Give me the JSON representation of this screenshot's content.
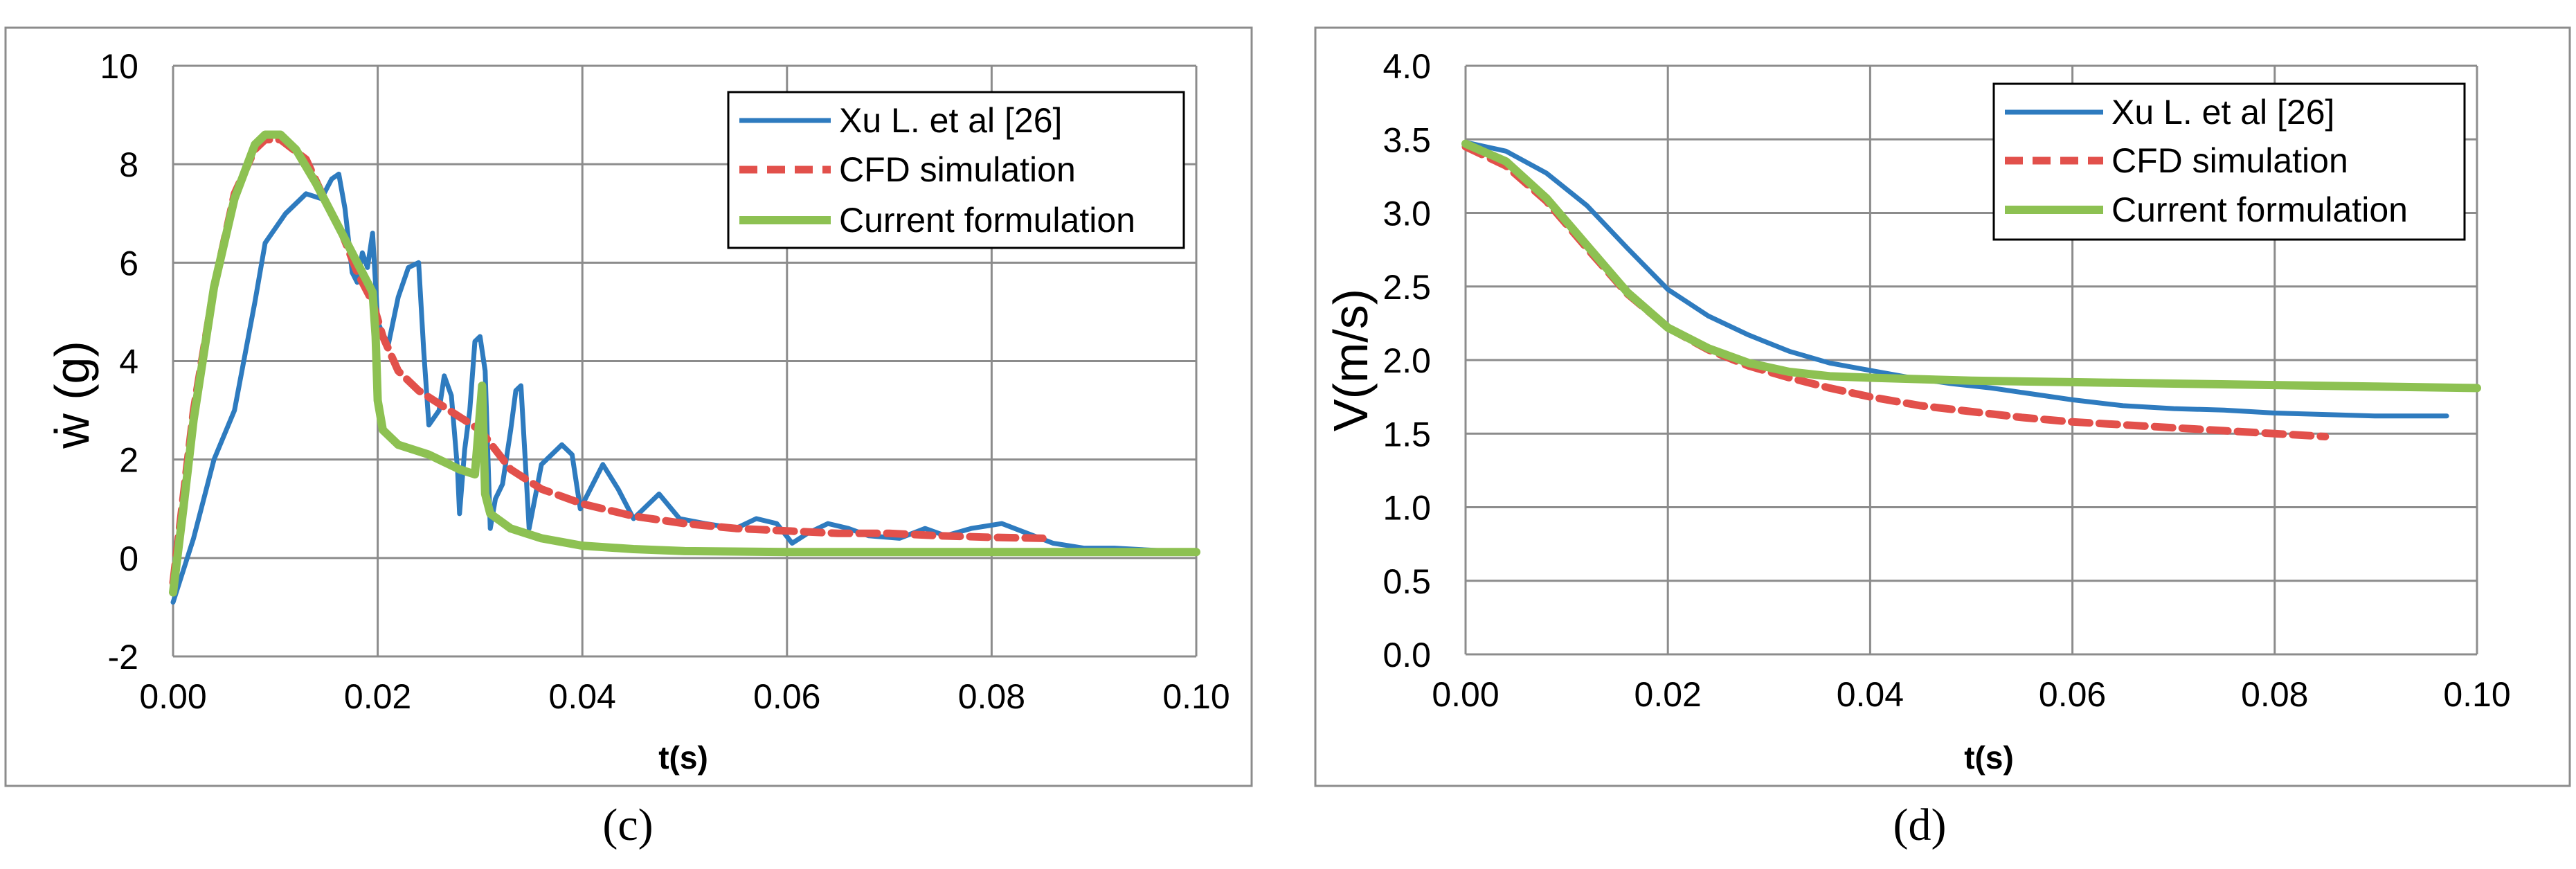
{
  "chart_data": [
    {
      "type": "line",
      "panel_label": "(c)",
      "xlabel": "t(s)",
      "ylabel": "ẇ (g)",
      "xlim": [
        0,
        0.1
      ],
      "ylim": [
        -2,
        10
      ],
      "x_ticks": [
        "0.00",
        "0.02",
        "0.04",
        "0.06",
        "0.08",
        "0.10"
      ],
      "y_ticks": [
        "-2",
        "0",
        "2",
        "4",
        "6",
        "8",
        "10"
      ],
      "legend_position": "top-right",
      "series": [
        {
          "name": "Xu L. et al [26]",
          "color": "#2e7bbf",
          "style": "solid",
          "points": [
            [
              0,
              -0.9
            ],
            [
              0.002,
              0.4
            ],
            [
              0.004,
              2.0
            ],
            [
              0.006,
              3.0
            ],
            [
              0.008,
              5.2
            ],
            [
              0.009,
              6.4
            ],
            [
              0.011,
              7.0
            ],
            [
              0.013,
              7.4
            ],
            [
              0.0145,
              7.3
            ],
            [
              0.0155,
              7.7
            ],
            [
              0.0162,
              7.8
            ],
            [
              0.0168,
              7.1
            ],
            [
              0.0175,
              5.8
            ],
            [
              0.018,
              5.6
            ],
            [
              0.0185,
              6.2
            ],
            [
              0.019,
              5.9
            ],
            [
              0.0195,
              6.6
            ],
            [
              0.02,
              4.8
            ],
            [
              0.021,
              4.3
            ],
            [
              0.022,
              5.3
            ],
            [
              0.023,
              5.9
            ],
            [
              0.024,
              6.0
            ],
            [
              0.0245,
              4.2
            ],
            [
              0.025,
              2.7
            ],
            [
              0.026,
              3.0
            ],
            [
              0.0265,
              3.7
            ],
            [
              0.0272,
              3.3
            ],
            [
              0.0278,
              1.8
            ],
            [
              0.028,
              0.9
            ],
            [
              0.0285,
              2.2
            ],
            [
              0.029,
              3.0
            ],
            [
              0.0295,
              4.4
            ],
            [
              0.03,
              4.5
            ],
            [
              0.0305,
              3.8
            ],
            [
              0.031,
              0.6
            ],
            [
              0.0315,
              1.2
            ],
            [
              0.0322,
              1.5
            ],
            [
              0.033,
              2.6
            ],
            [
              0.0335,
              3.4
            ],
            [
              0.034,
              3.5
            ],
            [
              0.0345,
              1.7
            ],
            [
              0.0348,
              0.6
            ],
            [
              0.036,
              1.9
            ],
            [
              0.038,
              2.3
            ],
            [
              0.039,
              2.1
            ],
            [
              0.0398,
              1.0
            ],
            [
              0.042,
              1.9
            ],
            [
              0.0435,
              1.4
            ],
            [
              0.045,
              0.8
            ],
            [
              0.0475,
              1.3
            ],
            [
              0.0495,
              0.8
            ],
            [
              0.052,
              0.7
            ],
            [
              0.055,
              0.6
            ],
            [
              0.057,
              0.8
            ],
            [
              0.059,
              0.7
            ],
            [
              0.0605,
              0.3
            ],
            [
              0.062,
              0.5
            ],
            [
              0.064,
              0.7
            ],
            [
              0.066,
              0.6
            ],
            [
              0.068,
              0.45
            ],
            [
              0.071,
              0.4
            ],
            [
              0.0735,
              0.6
            ],
            [
              0.0755,
              0.45
            ],
            [
              0.078,
              0.6
            ],
            [
              0.081,
              0.7
            ],
            [
              0.0835,
              0.5
            ],
            [
              0.086,
              0.3
            ],
            [
              0.089,
              0.2
            ],
            [
              0.092,
              0.2
            ],
            [
              0.0965,
              0.15
            ]
          ]
        },
        {
          "name": "CFD simulation",
          "color": "#e2504b",
          "style": "dashed",
          "points": [
            [
              0,
              -0.5
            ],
            [
              0.002,
              3.0
            ],
            [
              0.004,
              5.5
            ],
            [
              0.006,
              7.4
            ],
            [
              0.008,
              8.3
            ],
            [
              0.009,
              8.5
            ],
            [
              0.0105,
              8.5
            ],
            [
              0.013,
              8.1
            ],
            [
              0.015,
              7.2
            ],
            [
              0.0165,
              6.6
            ],
            [
              0.018,
              5.8
            ],
            [
              0.0195,
              5.2
            ],
            [
              0.0205,
              4.5
            ],
            [
              0.022,
              3.8
            ],
            [
              0.024,
              3.4
            ],
            [
              0.027,
              3.0
            ],
            [
              0.03,
              2.6
            ],
            [
              0.033,
              1.8
            ],
            [
              0.036,
              1.4
            ],
            [
              0.04,
              1.1
            ],
            [
              0.045,
              0.85
            ],
            [
              0.05,
              0.7
            ],
            [
              0.055,
              0.6
            ],
            [
              0.06,
              0.55
            ],
            [
              0.065,
              0.5
            ],
            [
              0.07,
              0.5
            ],
            [
              0.075,
              0.45
            ],
            [
              0.08,
              0.42
            ],
            [
              0.085,
              0.4
            ]
          ]
        },
        {
          "name": "Current formulation",
          "color": "#8dc152",
          "style": "solid",
          "points": [
            [
              0,
              -0.7
            ],
            [
              0.001,
              1.0
            ],
            [
              0.002,
              2.8
            ],
            [
              0.004,
              5.5
            ],
            [
              0.006,
              7.3
            ],
            [
              0.008,
              8.4
            ],
            [
              0.009,
              8.6
            ],
            [
              0.0105,
              8.6
            ],
            [
              0.012,
              8.3
            ],
            [
              0.014,
              7.6
            ],
            [
              0.016,
              6.8
            ],
            [
              0.018,
              6.0
            ],
            [
              0.0195,
              5.4
            ],
            [
              0.0198,
              4.5
            ],
            [
              0.02,
              3.2
            ],
            [
              0.0205,
              2.6
            ],
            [
              0.022,
              2.3
            ],
            [
              0.025,
              2.1
            ],
            [
              0.028,
              1.8
            ],
            [
              0.0295,
              1.7
            ],
            [
              0.0302,
              3.5
            ],
            [
              0.0305,
              1.3
            ],
            [
              0.031,
              0.9
            ],
            [
              0.033,
              0.6
            ],
            [
              0.036,
              0.4
            ],
            [
              0.04,
              0.25
            ],
            [
              0.045,
              0.18
            ],
            [
              0.05,
              0.14
            ],
            [
              0.06,
              0.12
            ],
            [
              0.07,
              0.12
            ],
            [
              0.08,
              0.12
            ],
            [
              0.09,
              0.12
            ],
            [
              0.1,
              0.12
            ]
          ]
        }
      ]
    },
    {
      "type": "line",
      "panel_label": "(d)",
      "xlabel": "t(s)",
      "ylabel": "V(m/s)",
      "xlim": [
        0,
        0.1
      ],
      "ylim": [
        0,
        4.0
      ],
      "x_ticks": [
        "0.00",
        "0.02",
        "0.04",
        "0.06",
        "0.08",
        "0.10"
      ],
      "y_ticks": [
        "0.0",
        "0.5",
        "1.0",
        "1.5",
        "2.0",
        "2.5",
        "3.0",
        "3.5",
        "4.0"
      ],
      "legend_position": "top-right",
      "series": [
        {
          "name": "Xu L. et al [26]",
          "color": "#2e7bbf",
          "style": "solid",
          "points": [
            [
              0,
              3.48
            ],
            [
              0.004,
              3.42
            ],
            [
              0.008,
              3.27
            ],
            [
              0.012,
              3.05
            ],
            [
              0.016,
              2.76
            ],
            [
              0.02,
              2.48
            ],
            [
              0.024,
              2.3
            ],
            [
              0.028,
              2.17
            ],
            [
              0.032,
              2.06
            ],
            [
              0.036,
              1.98
            ],
            [
              0.04,
              1.93
            ],
            [
              0.044,
              1.88
            ],
            [
              0.048,
              1.84
            ],
            [
              0.052,
              1.81
            ],
            [
              0.056,
              1.77
            ],
            [
              0.06,
              1.73
            ],
            [
              0.065,
              1.69
            ],
            [
              0.07,
              1.67
            ],
            [
              0.075,
              1.66
            ],
            [
              0.08,
              1.64
            ],
            [
              0.085,
              1.63
            ],
            [
              0.09,
              1.62
            ],
            [
              0.097,
              1.62
            ]
          ]
        },
        {
          "name": "CFD simulation",
          "color": "#e2504b",
          "style": "dashed",
          "points": [
            [
              0,
              3.45
            ],
            [
              0.004,
              3.32
            ],
            [
              0.008,
              3.08
            ],
            [
              0.012,
              2.76
            ],
            [
              0.016,
              2.45
            ],
            [
              0.02,
              2.22
            ],
            [
              0.024,
              2.07
            ],
            [
              0.028,
              1.96
            ],
            [
              0.032,
              1.88
            ],
            [
              0.036,
              1.81
            ],
            [
              0.04,
              1.75
            ],
            [
              0.045,
              1.69
            ],
            [
              0.05,
              1.65
            ],
            [
              0.055,
              1.61
            ],
            [
              0.06,
              1.58
            ],
            [
              0.065,
              1.56
            ],
            [
              0.07,
              1.54
            ],
            [
              0.075,
              1.52
            ],
            [
              0.08,
              1.5
            ],
            [
              0.085,
              1.48
            ]
          ]
        },
        {
          "name": "Current formulation",
          "color": "#8dc152",
          "style": "solid",
          "points": [
            [
              0,
              3.47
            ],
            [
              0.004,
              3.35
            ],
            [
              0.008,
              3.1
            ],
            [
              0.012,
              2.78
            ],
            [
              0.016,
              2.46
            ],
            [
              0.02,
              2.22
            ],
            [
              0.024,
              2.08
            ],
            [
              0.028,
              1.98
            ],
            [
              0.032,
              1.92
            ],
            [
              0.036,
              1.89
            ],
            [
              0.04,
              1.88
            ],
            [
              0.05,
              1.86
            ],
            [
              0.06,
              1.85
            ],
            [
              0.07,
              1.84
            ],
            [
              0.08,
              1.83
            ],
            [
              0.09,
              1.82
            ],
            [
              0.1,
              1.81
            ]
          ]
        }
      ]
    }
  ]
}
